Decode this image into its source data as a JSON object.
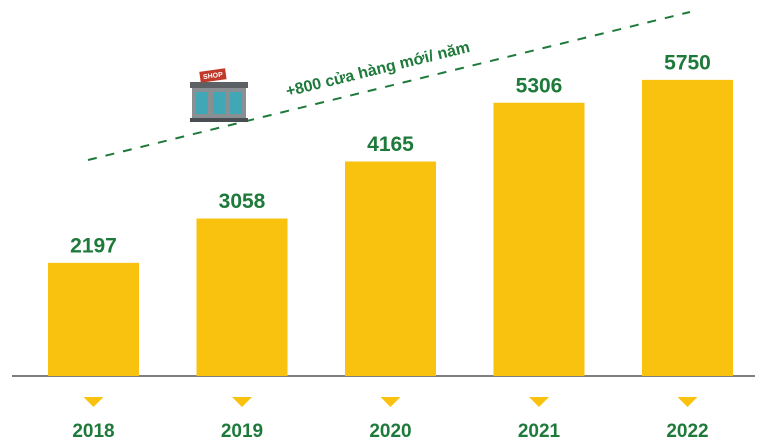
{
  "chart_data": {
    "type": "bar",
    "categories": [
      "2018",
      "2019",
      "2020",
      "2021",
      "2022"
    ],
    "values": [
      2197,
      3058,
      4165,
      5306,
      5750
    ],
    "color": "#f9c20f",
    "label_color": "#1e7a3a",
    "ylim": [
      0,
      6000
    ],
    "annotation": "+800 cửa hàng mới/ năm",
    "icon_label": "SHOP"
  }
}
